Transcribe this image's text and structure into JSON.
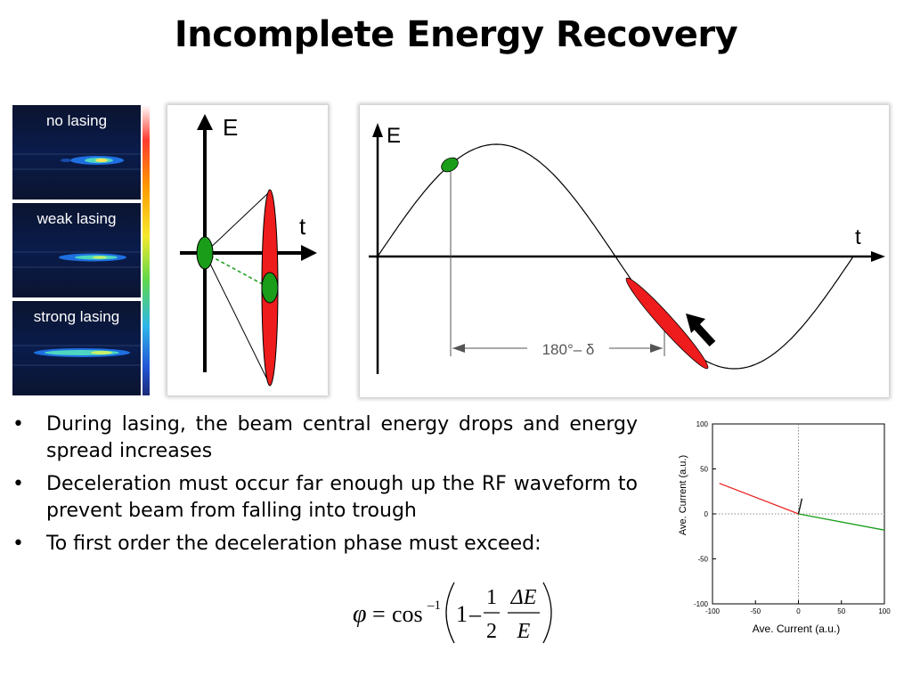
{
  "slide": {
    "title": "Incomplete Energy Recovery"
  },
  "spectra": {
    "panels": [
      {
        "label": "no lasing"
      },
      {
        "label": "weak lasing"
      },
      {
        "label": "strong lasing"
      }
    ]
  },
  "phase_diagram": {
    "axis_energy": "E",
    "axis_time": "t"
  },
  "waveform_diagram": {
    "axis_energy": "E",
    "axis_time": "t",
    "phase_label": "180°– δ"
  },
  "bullets": [
    "During lasing, the beam central energy drops and energy spread increases",
    "Deceleration must occur far enough up the RF waveform to prevent beam from falling into trough",
    "To first order the deceleration phase must exceed:"
  ],
  "bullet_symbol": "•",
  "formula": {
    "lhs": "φ",
    "eq": "=",
    "func": "cos",
    "sup": "–1",
    "one": "1",
    "minus": "–",
    "half_num": "1",
    "half_den": "2",
    "frac_num": "ΔE",
    "frac_den": "E"
  },
  "chart_data": {
    "type": "line",
    "title": "",
    "xlabel": "Ave. Current (a.u.)",
    "ylabel": "Ave. Current (a.u.)",
    "xlim": [
      -100,
      100
    ],
    "ylim": [
      -100,
      100
    ],
    "xticks": [
      -100,
      -50,
      0,
      50,
      100
    ],
    "yticks": [
      100,
      50,
      0,
      -50,
      -100
    ],
    "grid": false,
    "series": [
      {
        "color": "#e8231f",
        "x": [
          -92,
          0
        ],
        "y": [
          34,
          0
        ]
      },
      {
        "color": "#1a9e1a",
        "x": [
          0,
          100
        ],
        "y": [
          0,
          -18
        ]
      },
      {
        "color": "#000000",
        "x": [
          0,
          4
        ],
        "y": [
          0,
          17
        ]
      }
    ],
    "reference_lines": {
      "x": 0,
      "y": 0,
      "style": "dotted"
    }
  }
}
